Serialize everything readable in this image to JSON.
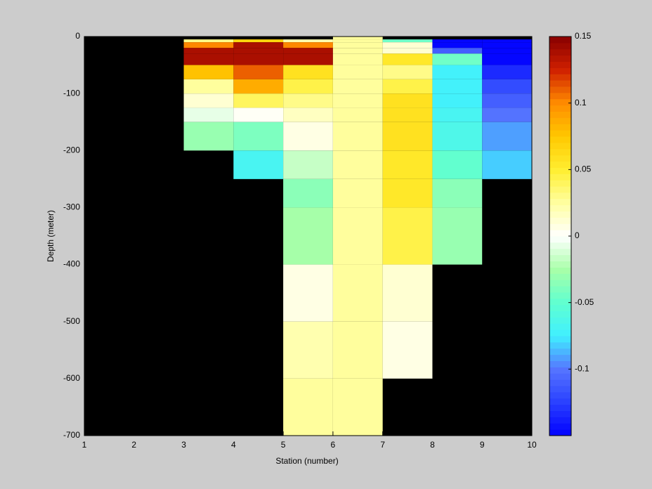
{
  "chart_data": {
    "type": "heatmap",
    "x_label": "Station (number)",
    "y_label": "Depth (meter)",
    "xlim": [
      1,
      10
    ],
    "xticks": [
      1,
      2,
      3,
      4,
      5,
      6,
      7,
      8,
      9,
      10
    ],
    "ylim": [
      -700,
      0
    ],
    "yticks": [
      0,
      -100,
      -200,
      -300,
      -400,
      -500,
      -600,
      -700
    ],
    "x_edges": [
      1,
      2,
      3,
      4,
      5,
      6,
      7,
      8,
      9,
      10
    ],
    "y_edges": [
      0,
      -5,
      -10,
      -20,
      -30,
      -50,
      -75,
      -100,
      -125,
      -150,
      -200,
      -250,
      -300,
      -400,
      -500,
      -600,
      -700
    ],
    "z": [
      [
        null,
        null,
        null,
        null,
        null,
        0.025,
        null,
        null,
        null
      ],
      [
        null,
        null,
        0.03,
        0.07,
        0.02,
        0.025,
        -0.045,
        -0.15,
        -0.15
      ],
      [
        null,
        null,
        0.1,
        0.14,
        0.1,
        0.025,
        0.01,
        -0.15,
        -0.15
      ],
      [
        null,
        null,
        0.14,
        0.14,
        0.14,
        0.025,
        0.01,
        -0.11,
        -0.15
      ],
      [
        null,
        null,
        0.14,
        0.14,
        0.14,
        0.025,
        0.055,
        -0.045,
        -0.15
      ],
      [
        null,
        null,
        0.075,
        0.11,
        0.06,
        0.025,
        0.03,
        -0.075,
        -0.135
      ],
      [
        null,
        null,
        0.025,
        0.085,
        0.045,
        0.025,
        0.045,
        -0.075,
        -0.12
      ],
      [
        null,
        null,
        0.01,
        0.04,
        0.03,
        0.025,
        0.06,
        -0.075,
        -0.11
      ],
      [
        null,
        null,
        -0.005,
        0.0,
        0.015,
        0.025,
        0.06,
        -0.07,
        -0.1
      ],
      [
        null,
        null,
        -0.03,
        -0.04,
        0.005,
        0.025,
        0.058,
        -0.065,
        -0.09
      ],
      [
        null,
        null,
        null,
        -0.07,
        -0.015,
        0.025,
        0.055,
        -0.05,
        -0.08
      ],
      [
        null,
        null,
        null,
        null,
        -0.035,
        0.025,
        0.055,
        -0.035,
        null
      ],
      [
        null,
        null,
        null,
        null,
        -0.025,
        0.025,
        0.045,
        -0.03,
        null
      ],
      [
        null,
        null,
        null,
        null,
        0.005,
        0.025,
        0.01,
        null,
        null
      ],
      [
        null,
        null,
        null,
        null,
        0.02,
        0.025,
        0.008,
        null,
        null
      ],
      [
        null,
        null,
        null,
        null,
        0.025,
        0.025,
        null,
        null,
        null
      ]
    ],
    "clim": [
      -0.15,
      0.15
    ],
    "cticks": [
      0.15,
      0.1,
      0.05,
      0,
      -0.05,
      -0.1
    ],
    "colormap": [
      "#0000ff",
      "#2a40ff",
      "#5575ff",
      "#40f0ff",
      "#60ffd0",
      "#a8ffa8",
      "#ffffff",
      "#ffffa0",
      "#ffee30",
      "#ffc800",
      "#ff8c00",
      "#d02000",
      "#880000"
    ],
    "nan_color": "#000000"
  }
}
